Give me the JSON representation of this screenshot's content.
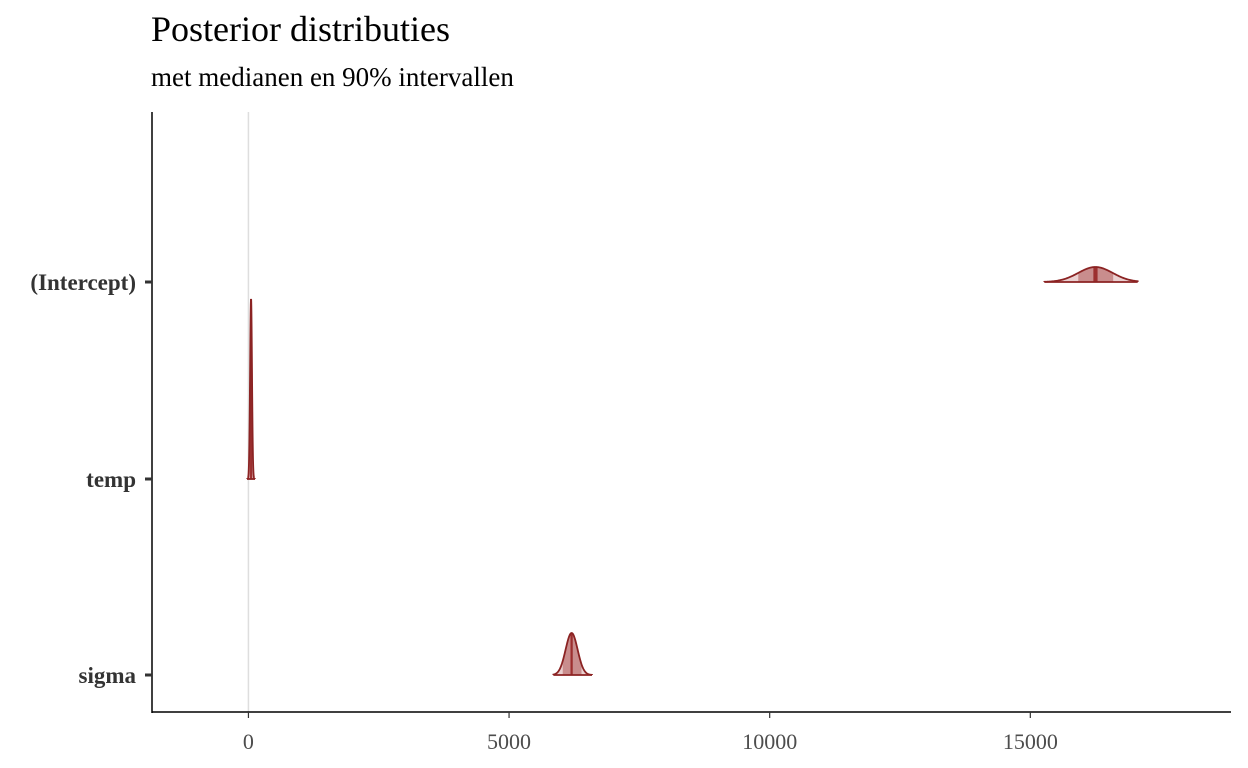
{
  "title": "Posterior distributies",
  "subtitle": "met medianen en 90% intervallen",
  "chart_data": {
    "type": "area",
    "title": "Posterior distributies",
    "subtitle": "met medianen en 90% intervallen",
    "xlabel": "",
    "ylabel": "",
    "xlim": [
      -1850,
      18850
    ],
    "x_ticks": [
      0,
      5000,
      10000,
      15000
    ],
    "x_tick_labels": [
      "0",
      "5000",
      "10000",
      "15000"
    ],
    "reference_line_x": 0,
    "grid": false,
    "parameters": [
      {
        "name": "(Intercept)",
        "median": 16250,
        "interval_90": [
          15920,
          16590
        ],
        "support": [
          15270,
          17060
        ],
        "sd": 330
      },
      {
        "name": "temp",
        "median": 50,
        "interval_90": [
          20,
          82
        ],
        "support": [
          -25,
          125
        ],
        "sd": 18
      },
      {
        "name": "sigma",
        "median": 6200,
        "interval_90": [
          6030,
          6390
        ],
        "support": [
          5850,
          6590
        ],
        "sd": 115
      }
    ],
    "colors": {
      "outline": "#8b2323",
      "fill": "#d9aaaa",
      "interval_fill": "#c98d8d",
      "median": "#9c2f2f",
      "reference_line": "#dedede",
      "axis": "#000000"
    }
  }
}
